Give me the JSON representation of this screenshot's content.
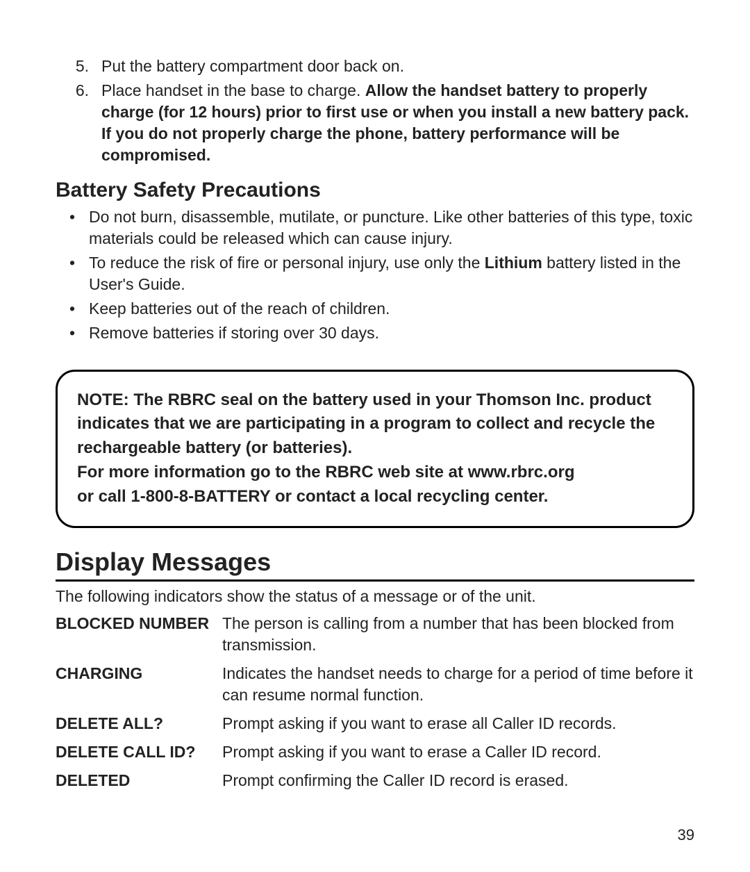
{
  "ordered": [
    {
      "num": "5.",
      "text": "Put the battery compartment door back on."
    },
    {
      "num": "6.",
      "text": "Place handset in the base to charge. ",
      "bold": "Allow the handset battery to properly charge (for 12 hours) prior to first use or when you install a new battery pack. If you do not properly charge the phone, battery performance will be compromised."
    }
  ],
  "subheading": "Battery Safety Precautions",
  "bullets": [
    {
      "pre": "Do not burn, disassemble, mutilate, or puncture. Like other batteries of this type, toxic materials could be released which can cause injury."
    },
    {
      "pre": "To reduce the risk of fire or personal injury, use only the ",
      "bold": "Lithium",
      "post": "  battery listed in the User's Guide."
    },
    {
      "pre": "Keep batteries out of the reach of children."
    },
    {
      "pre": "Remove batteries if storing over 30 days."
    }
  ],
  "note": {
    "l1": "NOTE: The RBRC seal on the battery used in your Thomson Inc. product indicates that we are participating in a program to collect and recycle the rechargeable battery (or batteries).",
    "l2": "For more information go to the RBRC web site at www.rbrc.org",
    "l3": "or call 1-800-8-BATTERY or contact a local recycling center."
  },
  "section_heading": "Display Messages",
  "section_intro": "The following indicators show the status of a message or of the unit.",
  "messages": [
    {
      "term": "BLOCKED NUMBER",
      "desc": "The person is calling from a number that has been blocked from transmission."
    },
    {
      "term": "CHARGING",
      "desc": "Indicates the handset needs to charge for a period of time before it can resume normal function."
    },
    {
      "term": "DELETE ALL?",
      "desc": "Prompt asking if you want to erase all Caller ID records."
    },
    {
      "term": "DELETE CALL ID?",
      "desc": "Prompt asking if you want to erase a Caller ID record."
    },
    {
      "term": "DELETED",
      "desc": "Prompt confirming the Caller ID record is erased."
    }
  ],
  "page_number": "39"
}
